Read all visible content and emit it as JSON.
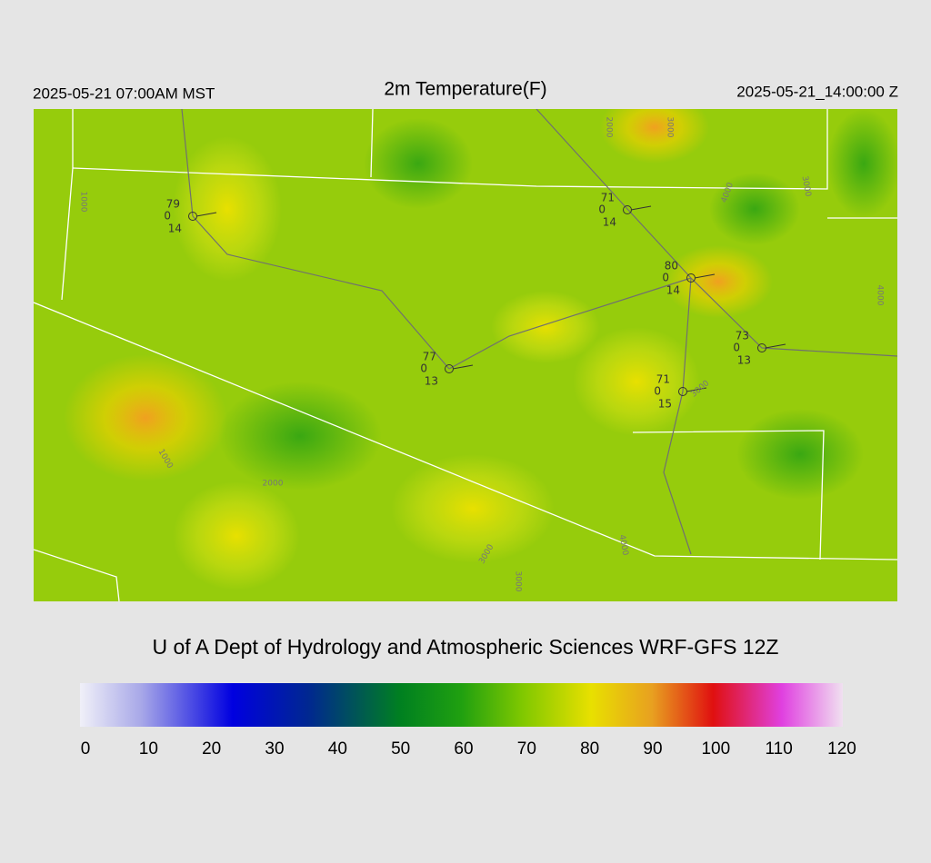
{
  "header": {
    "left": "2025-05-21 07:00AM MST",
    "title": "2m Temperature(F)",
    "right": "2025-05-21_14:00:00 Z"
  },
  "stations": [
    {
      "temp": 79,
      "wind": 0,
      "dew": 14
    },
    {
      "temp": 71,
      "wind": 0,
      "dew": 14
    },
    {
      "temp": 80,
      "wind": 0,
      "dew": 14
    },
    {
      "temp": 77,
      "wind": 0,
      "dew": 13
    },
    {
      "temp": 73,
      "wind": 0,
      "dew": 13
    },
    {
      "temp": 71,
      "wind": 0,
      "dew": 15
    }
  ],
  "contour_labels": [
    1000,
    2000,
    3000,
    4000,
    3000,
    4000,
    3000,
    1000,
    2000,
    3000,
    3000,
    4000
  ],
  "footer": "U of A Dept of Hydrology and Atmospheric Sciences WRF-GFS 12Z",
  "colorbar_ticks": [
    0,
    10,
    20,
    30,
    40,
    50,
    60,
    70,
    80,
    90,
    100,
    110,
    120
  ]
}
